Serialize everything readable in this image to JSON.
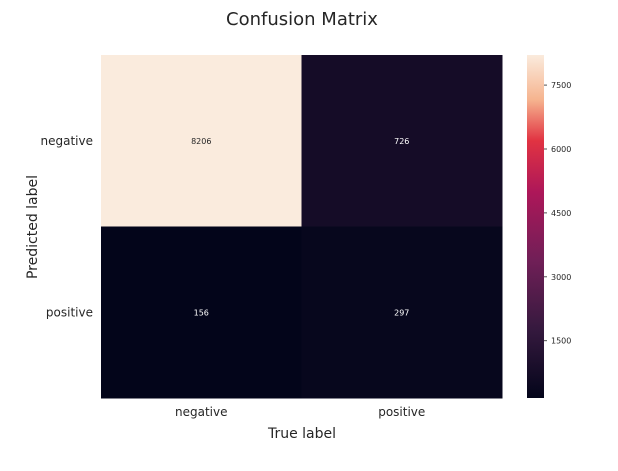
{
  "chart_data": {
    "type": "heatmap",
    "title": "Confusion Matrix",
    "xlabel": "True label",
    "ylabel": "Predicted label",
    "x_categories": [
      "negative",
      "positive"
    ],
    "y_categories": [
      "negative",
      "positive"
    ],
    "values": [
      [
        8206,
        726
      ],
      [
        156,
        297
      ]
    ],
    "colorbar": {
      "range": [
        156,
        8206
      ],
      "ticks": [
        1500,
        3000,
        4500,
        6000,
        7500
      ],
      "tick_labels": [
        "1500",
        "3000",
        "4500",
        "6000",
        "7500"
      ]
    },
    "colors": {
      "low": "#03051a",
      "mid_dark": "#4c1d4b",
      "mid": "#cb1b4f",
      "mid_light": "#f37651",
      "high": "#faebdd"
    },
    "grid": false,
    "legend": "colorbar-right"
  }
}
